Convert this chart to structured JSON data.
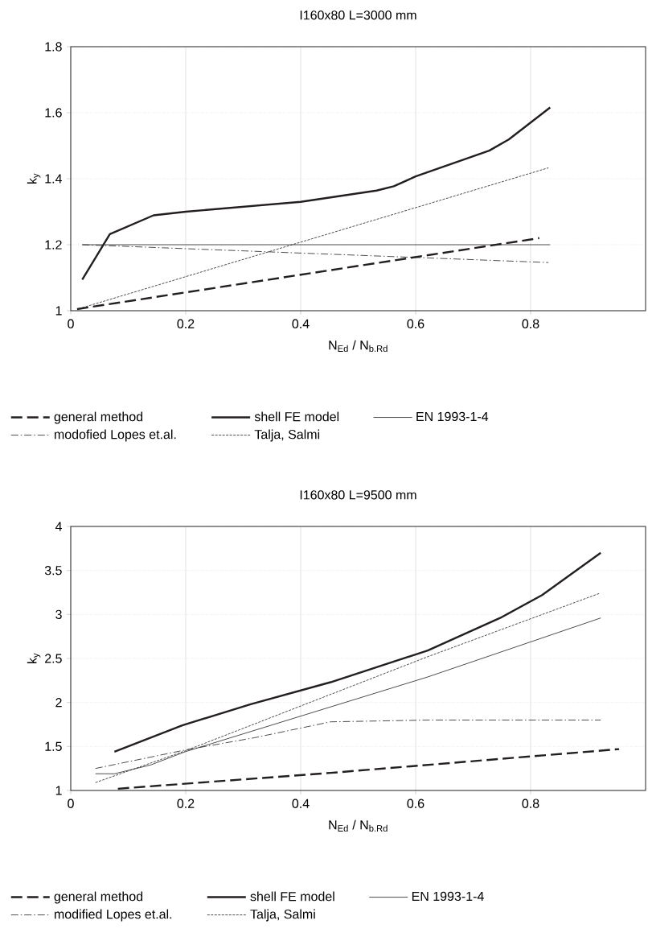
{
  "chart_data": [
    {
      "type": "line",
      "title": "I160x80 L=3000 mm",
      "xlabel": "N$_{Ed}$ / N$_{b.Rd}$",
      "ylabel": "k$_{y}$",
      "xlim": [
        0,
        1
      ],
      "ylim": [
        1,
        1.8
      ],
      "xticks": [
        0,
        0.2,
        0.4,
        0.6,
        0.8
      ],
      "yticks": [
        1,
        1.2,
        1.4,
        1.6,
        1.8
      ],
      "grid": true,
      "legend": "bottom",
      "series": [
        {
          "name": "general method",
          "color": "#231f20",
          "line_style": "dashed",
          "x": [
            0.011,
            0.815
          ],
          "values": [
            1.005,
            1.22
          ]
        },
        {
          "name": "shell FE model",
          "color": "#231f20",
          "line_style": "solid",
          "x": [
            0.02,
            0.068,
            0.144,
            0.2,
            0.4,
            0.532,
            0.562,
            0.6,
            0.728,
            0.762,
            0.834
          ],
          "values": [
            1.094,
            1.232,
            1.289,
            1.3,
            1.33,
            1.364,
            1.377,
            1.407,
            1.485,
            1.519,
            1.616
          ]
        },
        {
          "name": "EN 1993-1-4",
          "color": "#231f20",
          "line_style": "solid",
          "x": [
            0.02,
            0.834
          ],
          "values": [
            1.2,
            1.2
          ]
        },
        {
          "name": "modofied Lopes et.al.",
          "color": "#231f20",
          "line_style": "dashdot",
          "x": [
            0.02,
            0.831
          ],
          "values": [
            1.2,
            1.146
          ]
        },
        {
          "name": "Talja, Salmi",
          "color": "#231f20",
          "line_style": "dashed",
          "x": [
            0.014,
            0.831
          ],
          "values": [
            1.006,
            1.433
          ]
        }
      ]
    },
    {
      "type": "line",
      "title": "I160x80 L=9500 mm",
      "xlabel": "N$_{Ed}$ / N$_{b.Rd}$",
      "ylabel": "k$_{y}$",
      "xlim": [
        0,
        1
      ],
      "ylim": [
        1,
        4
      ],
      "xticks": [
        0,
        0.2,
        0.4,
        0.6,
        0.8
      ],
      "yticks": [
        1,
        1.5,
        2,
        2.5,
        3,
        3.5,
        4
      ],
      "grid": true,
      "legend": "bottom",
      "series": [
        {
          "name": "general method",
          "color": "#231f20",
          "line_style": "dashed",
          "x": [
            0.082,
            0.452,
            0.954
          ],
          "values": [
            1.02,
            1.2,
            1.47
          ]
        },
        {
          "name": "shell FE model",
          "color": "#231f20",
          "line_style": "solid",
          "x": [
            0.076,
            0.194,
            0.313,
            0.452,
            0.621,
            0.747,
            0.82,
            0.922
          ],
          "values": [
            1.44,
            1.74,
            1.98,
            2.23,
            2.59,
            2.96,
            3.22,
            3.7
          ]
        },
        {
          "name": "EN 1993-1-4",
          "color": "#231f20",
          "line_style": "solid",
          "x": [
            0.043,
            0.076,
            0.139,
            0.199,
            0.621,
            0.922
          ],
          "values": [
            1.19,
            1.19,
            1.29,
            1.44,
            2.29,
            2.96
          ]
        },
        {
          "name": "modified Lopes et.al.",
          "color": "#231f20",
          "line_style": "dashdot",
          "x": [
            0.043,
            0.199,
            0.32,
            0.452,
            0.621,
            0.922
          ],
          "values": [
            1.25,
            1.46,
            1.6,
            1.78,
            1.8,
            1.8
          ]
        },
        {
          "name": "Talja, Salmi",
          "color": "#231f20",
          "line_style": "dashed",
          "x": [
            0.043,
            0.199,
            0.621,
            0.92
          ],
          "values": [
            1.09,
            1.45,
            2.52,
            3.24
          ]
        }
      ]
    }
  ]
}
